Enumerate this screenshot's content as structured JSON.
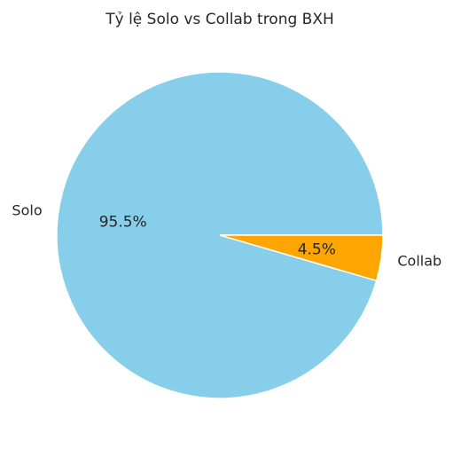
{
  "chart_data": {
    "type": "pie",
    "title": "Tỷ lệ Solo vs Collab trong BXH",
    "categories": [
      "Solo",
      "Collab"
    ],
    "values": [
      95.5,
      4.5
    ],
    "percent_labels": [
      "95.5%",
      "4.5%"
    ],
    "colors": [
      "#87ceeb",
      "#ffa500"
    ],
    "start_angle_deg": 0,
    "direction": "counterclockwise",
    "legend": "none"
  }
}
